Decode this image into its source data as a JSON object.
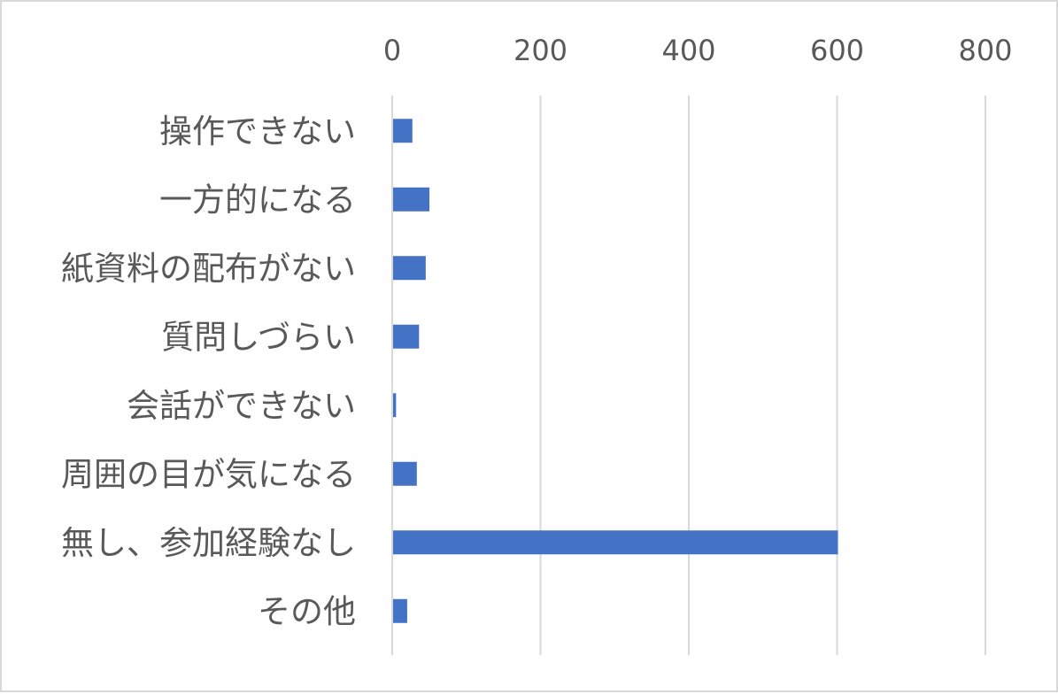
{
  "chart_data": {
    "type": "bar",
    "orientation": "horizontal",
    "categories": [
      "操作できない",
      "一方的になる",
      "紙資料の配布がない",
      "質問しづらい",
      "会話ができない",
      "周囲の目が気になる",
      "無し、参加経験なし",
      "その他"
    ],
    "values": [
      26,
      49,
      44,
      35,
      4,
      32,
      600,
      19
    ],
    "xlim": [
      0,
      800
    ],
    "xticks": [
      0,
      200,
      400,
      600,
      800
    ],
    "x_axis_position": "top",
    "grid": true,
    "legend": "none",
    "title": "",
    "xlabel": "",
    "ylabel": "",
    "colors": {
      "bar": "#4472c4",
      "grid": "#d9d9d9",
      "text": "#595959",
      "border": "#d9d9d9"
    }
  }
}
